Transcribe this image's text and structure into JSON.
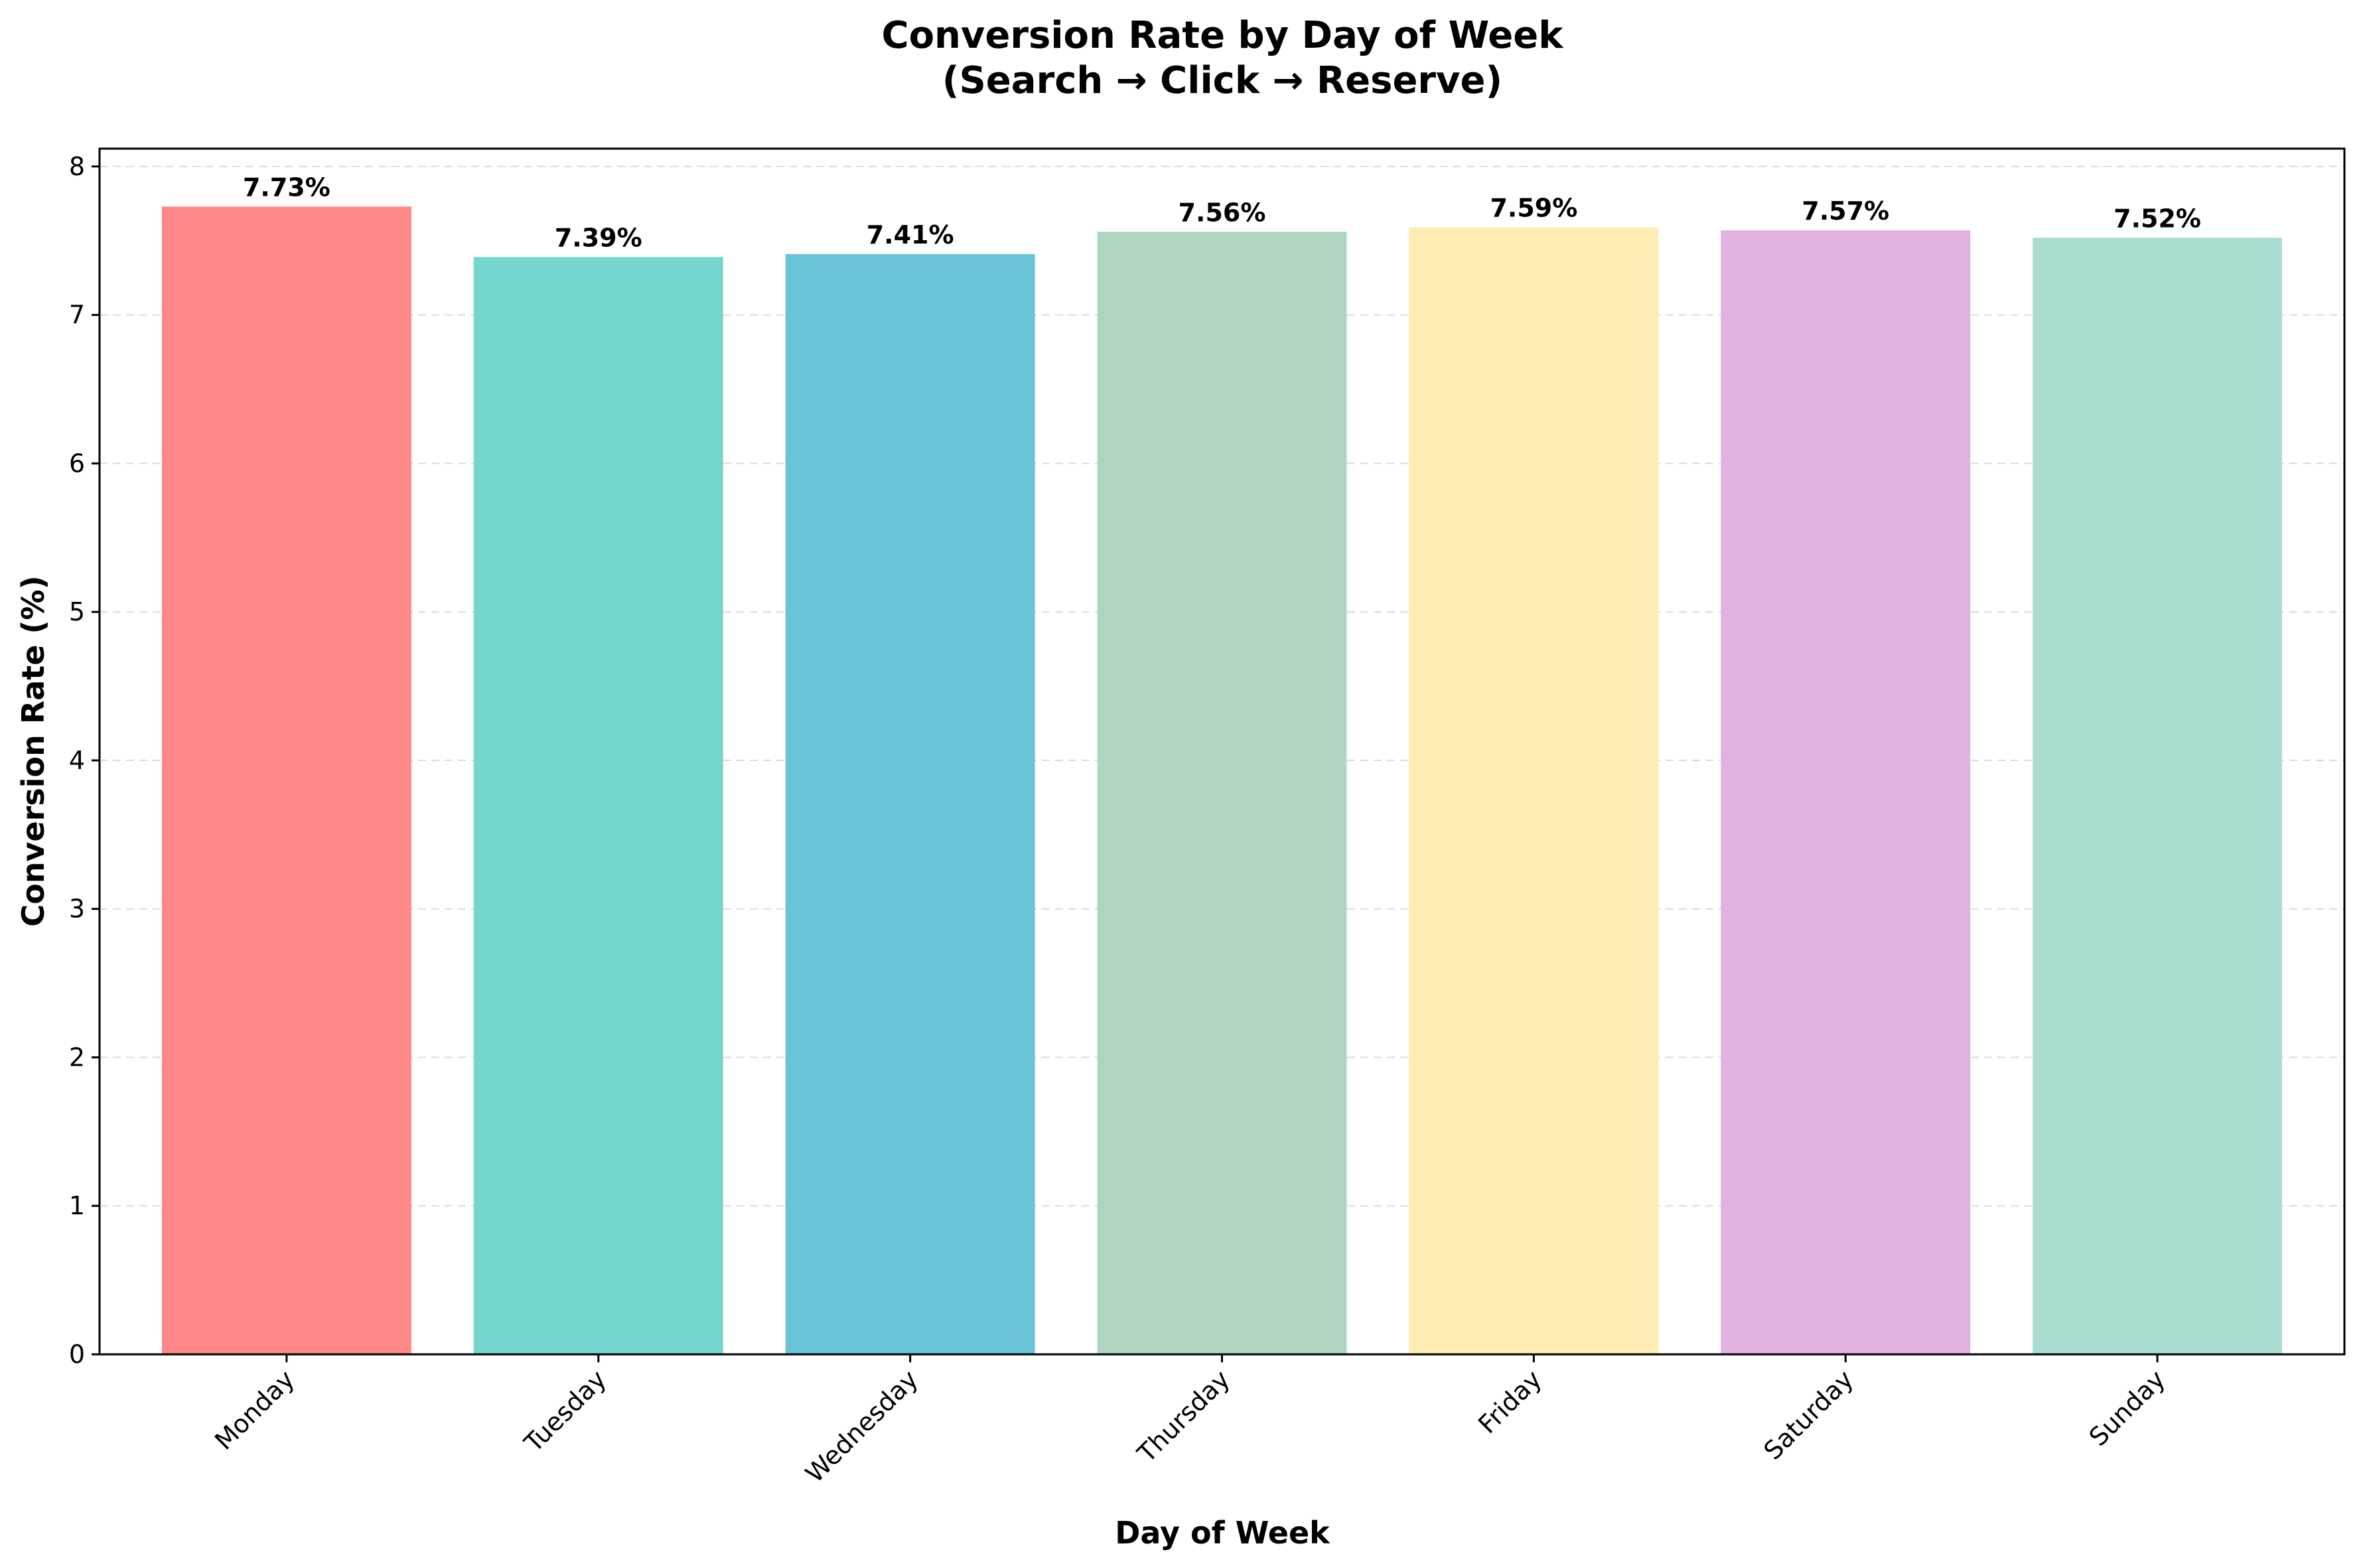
{
  "chart_data": {
    "type": "bar",
    "title_line1": "Conversion Rate by Day of Week",
    "title_line2": "(Search → Click → Reserve)",
    "xlabel": "Day of Week",
    "ylabel": "Conversion Rate (%)",
    "categories": [
      "Monday",
      "Tuesday",
      "Wednesday",
      "Thursday",
      "Friday",
      "Saturday",
      "Sunday"
    ],
    "values": [
      7.73,
      7.39,
      7.41,
      7.56,
      7.59,
      7.57,
      7.52
    ],
    "value_labels": [
      "7.73%",
      "7.39%",
      "7.41%",
      "7.56%",
      "7.59%",
      "7.57%",
      "7.52%"
    ],
    "colors": [
      "#FF8787",
      "#74D6CE",
      "#6AC3D7",
      "#ADD5C0",
      "#FEECB4",
      "#E1B1E0",
      "#A9DDD2"
    ],
    "ylim": [
      0,
      8.12
    ],
    "yticks": [
      0,
      1,
      2,
      3,
      4,
      5,
      6,
      7,
      8
    ],
    "grid": "y-dashed",
    "legend": "none"
  }
}
